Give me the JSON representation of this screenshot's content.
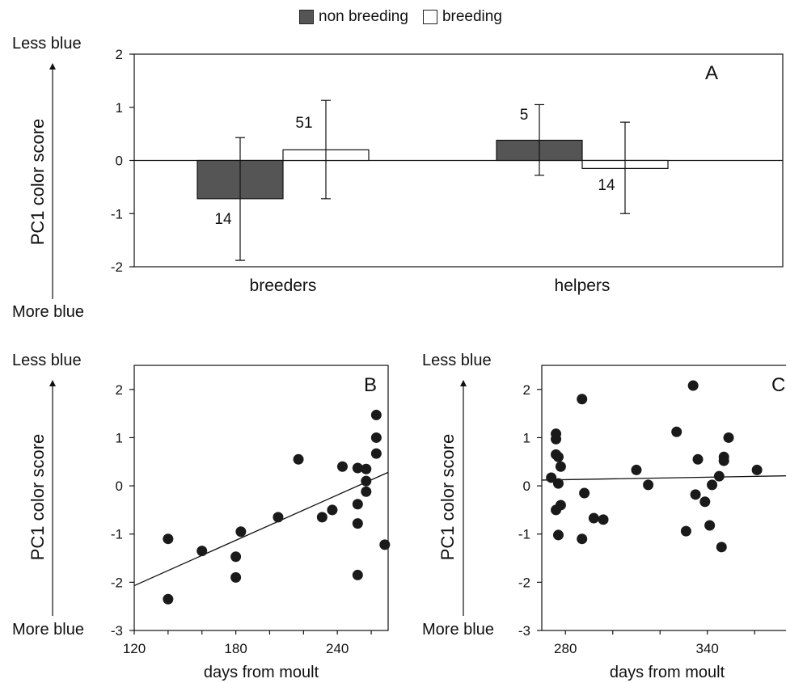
{
  "legend": {
    "non_breeding": "non breeding",
    "breeding": "breeding"
  },
  "side_labels": {
    "top": "Less blue",
    "bottom": "More blue"
  },
  "colors": {
    "non_breeding_fill": "#555555",
    "breeding_fill": "#ffffff",
    "ink": "#111111"
  },
  "chart_data": [
    {
      "panel": "A",
      "type": "bar",
      "ylabel": "PC1 color score",
      "ylim": [
        -2,
        2
      ],
      "yticks": [
        -2,
        -1,
        0,
        1,
        2
      ],
      "categories": [
        "breeders",
        "helpers"
      ],
      "series": [
        {
          "name": "non breeding",
          "values": [
            -0.72,
            0.38
          ],
          "error_low": [
            -1.88,
            -0.28
          ],
          "error_high": [
            0.43,
            1.05
          ],
          "n": [
            "14",
            "5"
          ]
        },
        {
          "name": "breeding",
          "values": [
            0.2,
            -0.15
          ],
          "error_low": [
            -0.72,
            -1.0
          ],
          "error_high": [
            1.13,
            0.72
          ],
          "n": [
            "51",
            "14"
          ]
        }
      ]
    },
    {
      "panel": "B",
      "type": "scatter",
      "xlabel": "days from moult",
      "ylabel": "PC1 color score",
      "xlim": [
        120,
        270
      ],
      "ylim": [
        -3,
        2.5
      ],
      "xticks": [
        120,
        180,
        240
      ],
      "yticks": [
        -3,
        -2,
        -1,
        0,
        1,
        2
      ],
      "points": [
        [
          140,
          -1.1
        ],
        [
          140,
          -2.35
        ],
        [
          160,
          -1.35
        ],
        [
          180,
          -1.47
        ],
        [
          180,
          -1.9
        ],
        [
          183,
          -0.95
        ],
        [
          205,
          -0.65
        ],
        [
          217,
          0.55
        ],
        [
          231,
          -0.65
        ],
        [
          237,
          -0.5
        ],
        [
          243,
          0.4
        ],
        [
          252,
          0.37
        ],
        [
          252,
          -0.38
        ],
        [
          252,
          -0.78
        ],
        [
          252,
          -1.85
        ],
        [
          257,
          0.35
        ],
        [
          257,
          0.1
        ],
        [
          257,
          -0.12
        ],
        [
          263,
          1.47
        ],
        [
          263,
          1.0
        ],
        [
          263,
          0.67
        ],
        [
          268,
          -1.22
        ]
      ],
      "fit_line": [
        [
          120,
          -2.07
        ],
        [
          270,
          0.28
        ]
      ]
    },
    {
      "panel": "C",
      "type": "scatter",
      "xlabel": "days from moult",
      "ylabel": "PC1 color score",
      "xlim": [
        270,
        376
      ],
      "ylim": [
        -3,
        2.5
      ],
      "xticks": [
        280,
        340
      ],
      "yticks": [
        -3,
        -2,
        -1,
        0,
        1,
        2
      ],
      "points": [
        [
          274,
          0.17
        ],
        [
          276,
          1.08
        ],
        [
          276,
          0.97
        ],
        [
          276,
          0.65
        ],
        [
          276,
          -0.5
        ],
        [
          277,
          0.6
        ],
        [
          277,
          0.05
        ],
        [
          278,
          0.4
        ],
        [
          278,
          -0.4
        ],
        [
          277,
          -1.02
        ],
        [
          287,
          1.8
        ],
        [
          288,
          -0.15
        ],
        [
          287,
          -1.1
        ],
        [
          292,
          -0.67
        ],
        [
          296,
          -0.7
        ],
        [
          310,
          0.33
        ],
        [
          315,
          0.02
        ],
        [
          327,
          1.12
        ],
        [
          331,
          -0.94
        ],
        [
          334,
          2.08
        ],
        [
          336,
          0.55
        ],
        [
          335,
          -0.18
        ],
        [
          339,
          -0.33
        ],
        [
          341,
          -0.82
        ],
        [
          342,
          0.02
        ],
        [
          345,
          0.2
        ],
        [
          349,
          1.0
        ],
        [
          347,
          0.6
        ],
        [
          347,
          0.52
        ],
        [
          346,
          -1.27
        ],
        [
          361,
          0.33
        ]
      ],
      "fit_line": [
        [
          270,
          0.12
        ],
        [
          376,
          0.21
        ]
      ]
    }
  ]
}
